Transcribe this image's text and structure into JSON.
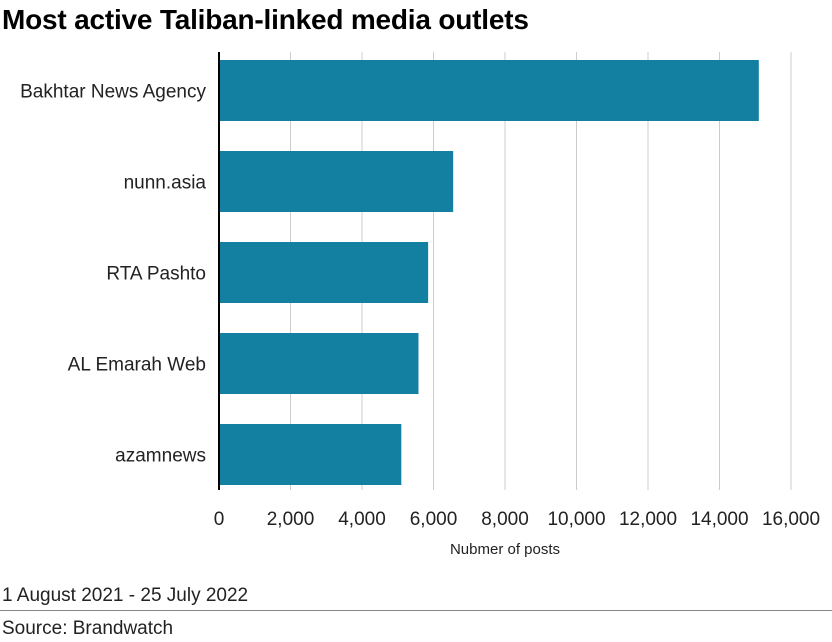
{
  "title": "Most active Taliban-linked media outlets",
  "footnote": "1 August 2021 - 25 July 2022",
  "source": "Source: Brandwatch",
  "colors": {
    "bar": "#1380a1",
    "grid": "#cccccc",
    "axis": "#000000"
  },
  "chart_data": {
    "type": "bar",
    "orientation": "horizontal",
    "categories": [
      "Bakhtar News Agency",
      "nunn.asia",
      "RTA Pashto",
      "AL Emarah Web",
      "azamnews"
    ],
    "values": [
      15100,
      6550,
      5850,
      5580,
      5100
    ],
    "xlabel": "Nubmer of posts",
    "ylabel": "",
    "xlim": [
      0,
      16000
    ],
    "xticks": [
      0,
      2000,
      4000,
      6000,
      8000,
      10000,
      12000,
      14000,
      16000
    ],
    "xtick_labels": [
      "0",
      "2,000",
      "4,000",
      "6,000",
      "8,000",
      "10,000",
      "12,000",
      "14,000",
      "16,000"
    ],
    "grid": "vertical",
    "legend": "none"
  }
}
